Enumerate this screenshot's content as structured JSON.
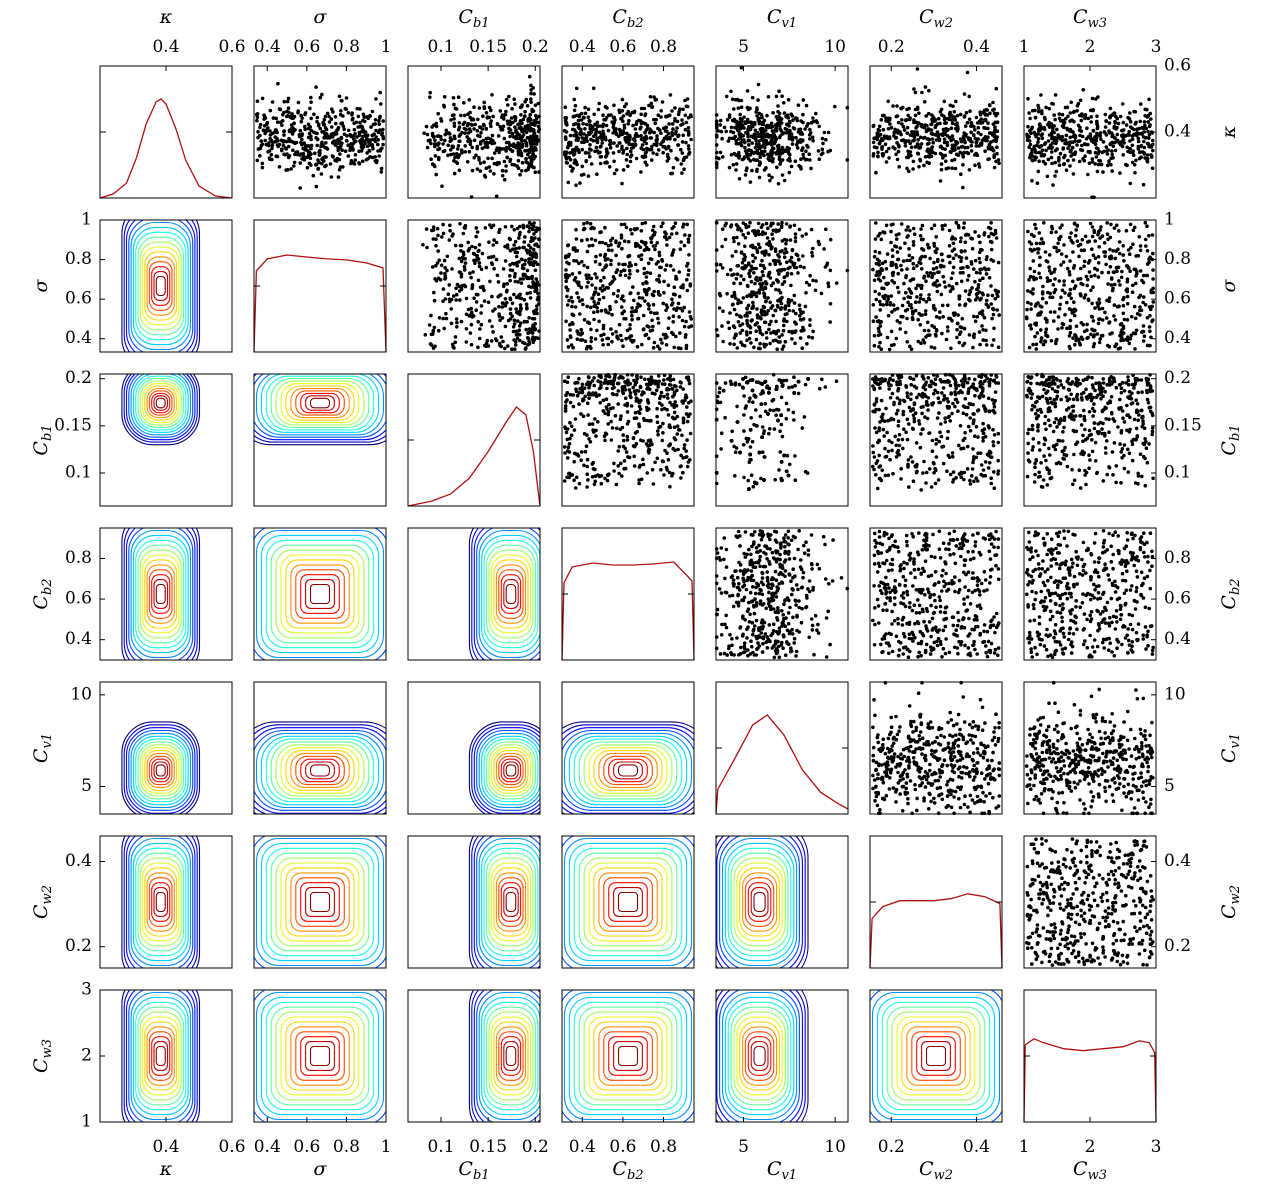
{
  "chart_data": {
    "type": "corner",
    "title": "",
    "parameters": [
      {
        "label": "κ",
        "lim": [
          0.2,
          0.6
        ],
        "ticks": [
          "0.4",
          "0.6"
        ],
        "tickvals": [
          0.4,
          0.6
        ]
      },
      {
        "label": "σ",
        "lim": [
          0.333,
          1.0
        ],
        "ticks": [
          "0.4",
          "0.6",
          "0.8",
          "1"
        ],
        "tickvals": [
          0.4,
          0.6,
          0.8,
          1.0
        ]
      },
      {
        "label": "Cb1",
        "lim": [
          0.065,
          0.205
        ],
        "ticks": [
          "0.1",
          "0.15",
          "0.2"
        ],
        "tickvals": [
          0.1,
          0.15,
          0.2
        ]
      },
      {
        "label": "Cb2",
        "lim": [
          0.3,
          0.95
        ],
        "ticks": [
          "0.4",
          "0.6",
          "0.8"
        ],
        "tickvals": [
          0.4,
          0.6,
          0.8
        ]
      },
      {
        "label": "Cv1",
        "lim": [
          3.5,
          10.7
        ],
        "ticks": [
          "5",
          "10"
        ],
        "tickvals": [
          5,
          10
        ]
      },
      {
        "label": "Cw2",
        "lim": [
          0.15,
          0.46
        ],
        "ticks": [
          "0.2",
          "0.4"
        ],
        "tickvals": [
          0.2,
          0.4
        ]
      },
      {
        "label": "Cw3",
        "lim": [
          1.0,
          3.0
        ],
        "ticks": [
          "1",
          "2",
          "3"
        ],
        "tickvals": [
          1,
          2,
          3
        ]
      }
    ],
    "marginals": [
      {
        "param": "κ",
        "x": [
          0.2,
          0.24,
          0.28,
          0.31,
          0.34,
          0.37,
          0.385,
          0.4,
          0.43,
          0.46,
          0.5,
          0.55,
          0.6
        ],
        "density": [
          0.0,
          0.04,
          0.15,
          0.4,
          0.75,
          0.97,
          1.0,
          0.95,
          0.7,
          0.38,
          0.12,
          0.02,
          0.0
        ]
      },
      {
        "param": "σ",
        "x": [
          0.333,
          0.345,
          0.4,
          0.5,
          0.6,
          0.7,
          0.8,
          0.9,
          0.985,
          1.0
        ],
        "density": [
          0.0,
          0.82,
          0.94,
          0.98,
          0.96,
          0.94,
          0.93,
          0.9,
          0.85,
          0.0
        ]
      },
      {
        "param": "Cb1",
        "x": [
          0.065,
          0.09,
          0.11,
          0.13,
          0.15,
          0.17,
          0.18,
          0.19,
          0.198,
          0.205
        ],
        "density": [
          0.0,
          0.05,
          0.12,
          0.28,
          0.55,
          0.86,
          1.0,
          0.92,
          0.55,
          0.0
        ]
      },
      {
        "param": "Cb2",
        "x": [
          0.3,
          0.31,
          0.35,
          0.45,
          0.55,
          0.65,
          0.75,
          0.85,
          0.94,
          0.95
        ],
        "density": [
          0.0,
          0.78,
          0.94,
          0.98,
          0.96,
          0.96,
          0.97,
          0.99,
          0.8,
          0.0
        ]
      },
      {
        "param": "Cv1",
        "x": [
          3.5,
          3.6,
          4.5,
          5.5,
          6.3,
          7.2,
          8.2,
          9.2,
          10.2,
          10.7
        ],
        "density": [
          0.0,
          0.25,
          0.55,
          0.9,
          1.0,
          0.8,
          0.45,
          0.22,
          0.1,
          0.05
        ]
      },
      {
        "param": "Cw2",
        "x": [
          0.15,
          0.155,
          0.18,
          0.22,
          0.26,
          0.3,
          0.34,
          0.38,
          0.42,
          0.455,
          0.46
        ],
        "density": [
          0.0,
          0.5,
          0.62,
          0.68,
          0.68,
          0.68,
          0.7,
          0.75,
          0.72,
          0.65,
          0.0
        ]
      },
      {
        "param": "Cw3",
        "x": [
          1.0,
          1.02,
          1.15,
          1.3,
          1.6,
          1.9,
          2.2,
          2.5,
          2.75,
          2.9,
          2.98,
          3.0
        ],
        "density": [
          0.0,
          0.78,
          0.84,
          0.8,
          0.74,
          0.72,
          0.74,
          0.76,
          0.82,
          0.8,
          0.7,
          0.0
        ]
      }
    ],
    "upper_panels": "scatter of posterior samples",
    "lower_panels": "2-D density contours (blue low → red high)",
    "legend_placement": "none",
    "grid": false
  }
}
